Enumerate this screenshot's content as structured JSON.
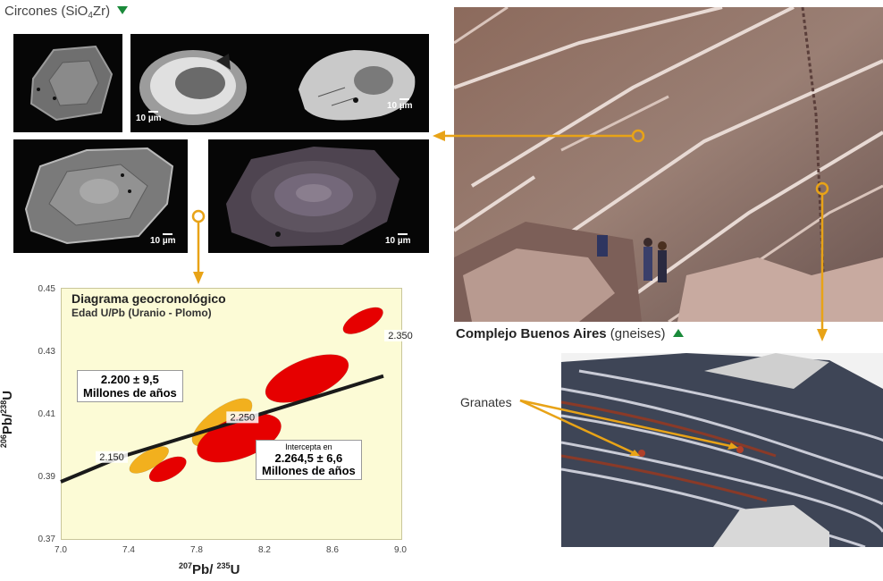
{
  "header": {
    "title_prefix": "Circones (SiO",
    "title_sub": "4",
    "title_suffix": "Zr)",
    "marker_icon": "triangle-down-icon",
    "marker_color": "#1a8a3a"
  },
  "zircon_panels": {
    "scale_labels": [
      "10 µm",
      "10 µm",
      "10 µm",
      "10 µm"
    ]
  },
  "photos": {
    "outcrop_caption_bold": "Complejo Buenos Aires",
    "outcrop_caption_rest": " (gneises)",
    "outcrop_marker_icon": "triangle-up-icon",
    "gneiss_label": "Granates"
  },
  "colors": {
    "connector": "#e8a317",
    "ellipse_red": "#e60000",
    "ellipse_orange": "#f2b01e",
    "concordia": "#1a1a1a",
    "chart_bg": "#fcfbd6"
  },
  "chart": {
    "title": "Diagrama geocronológico",
    "subtitle": "Edad U/Pb (Uranio - Plomo)",
    "box1_line1": "2.200 ± 9,5",
    "box1_line2": "Millones de años",
    "box2_line0": "Intercepta en",
    "box2_line1": "2.264,5 ± 6,6",
    "box2_line2": "Millones de años",
    "ylabel_main": "Pb/",
    "ylabel_sup1": "206",
    "ylabel_sup2": "238",
    "ylabel_end": "U",
    "xlabel_sup1": "207",
    "xlabel_main": "Pb/ ",
    "xlabel_sup2": "235",
    "xlabel_end": "U"
  },
  "chart_data": {
    "type": "scatter",
    "title": "Diagrama geocronológico",
    "subtitle": "Edad U/Pb (Uranio - Plomo)",
    "xlabel": "207Pb/235U",
    "ylabel": "206Pb/238U",
    "xlim": [
      7.0,
      9.0
    ],
    "ylim": [
      0.37,
      0.45
    ],
    "x_ticks": [
      "7.0",
      "7.4",
      "7.8",
      "8.2",
      "8.6",
      "9.0"
    ],
    "y_ticks": [
      "0.45",
      "0.43",
      "0.41",
      "0.39",
      "0.37"
    ],
    "concordia": {
      "x": [
        7.0,
        7.35,
        8.0,
        8.9
      ],
      "y": [
        0.388,
        0.3959,
        0.4067,
        0.4218
      ]
    },
    "concordia_age_labels": [
      {
        "label": "2.150",
        "x": 7.3,
        "y": 0.3952
      },
      {
        "label": "2.250",
        "x": 8.07,
        "y": 0.4079
      },
      {
        "label": "2.350",
        "x": 9.0,
        "y": 0.434
      }
    ],
    "series": [
      {
        "color": "#f2b01e",
        "ellipses": [
          {
            "cx": 7.52,
            "cy": 0.395,
            "rx": 0.13,
            "ry": 0.0028,
            "angle": 30
          },
          {
            "cx": 7.95,
            "cy": 0.407,
            "rx": 0.21,
            "ry": 0.0045,
            "angle": 36
          }
        ]
      },
      {
        "color": "#e60000",
        "ellipses": [
          {
            "cx": 7.63,
            "cy": 0.392,
            "rx": 0.12,
            "ry": 0.003,
            "angle": 28
          },
          {
            "cx": 8.05,
            "cy": 0.402,
            "rx": 0.26,
            "ry": 0.0065,
            "angle": 20
          },
          {
            "cx": 8.45,
            "cy": 0.421,
            "rx": 0.26,
            "ry": 0.006,
            "angle": 22
          },
          {
            "cx": 8.78,
            "cy": 0.4395,
            "rx": 0.13,
            "ry": 0.003,
            "angle": 28
          }
        ]
      }
    ]
  }
}
